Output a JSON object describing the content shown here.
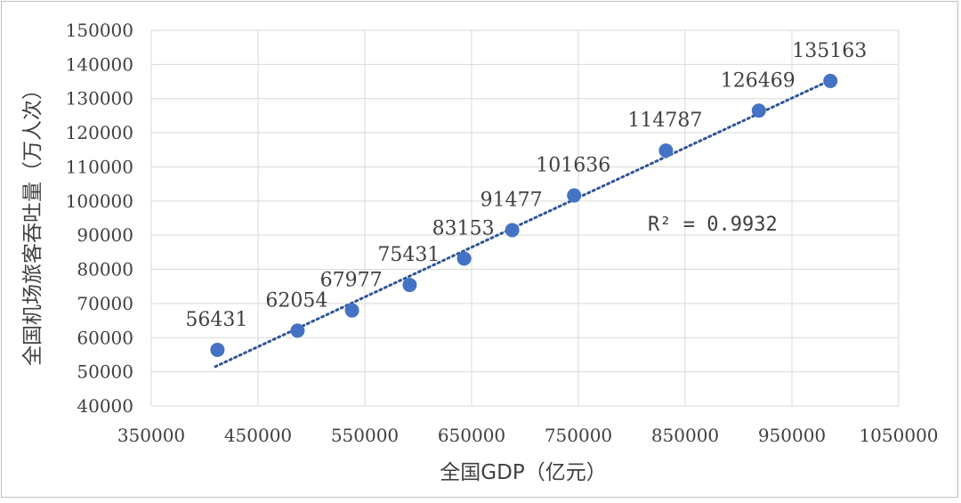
{
  "chart_data": {
    "type": "scatter",
    "xlabel": "全国GDP（亿元）",
    "ylabel": "全国机场旅客吞吐量（万人次）",
    "xlim": [
      350000,
      1050000
    ],
    "ylim": [
      40000,
      150000
    ],
    "x_ticks": [
      "350000",
      "450000",
      "550000",
      "650000",
      "750000",
      "850000",
      "950000",
      "1050000"
    ],
    "y_ticks": [
      "40000",
      "50000",
      "60000",
      "70000",
      "80000",
      "90000",
      "100000",
      "110000",
      "120000",
      "130000",
      "140000",
      "150000"
    ],
    "points": [
      {
        "x": 412000,
        "y": 56431,
        "label": "56431"
      },
      {
        "x": 487000,
        "y": 62054,
        "label": "62054"
      },
      {
        "x": 538000,
        "y": 67977,
        "label": "67977"
      },
      {
        "x": 592000,
        "y": 75431,
        "label": "75431"
      },
      {
        "x": 643000,
        "y": 83153,
        "label": "83153"
      },
      {
        "x": 688000,
        "y": 91477,
        "label": "91477"
      },
      {
        "x": 746000,
        "y": 101636,
        "label": "101636"
      },
      {
        "x": 832000,
        "y": 114787,
        "label": "114787"
      },
      {
        "x": 919000,
        "y": 126469,
        "label": "126469"
      },
      {
        "x": 986000,
        "y": 135163,
        "label": "135163"
      }
    ],
    "trendline": {
      "type": "linear",
      "style": "dotted",
      "r2_label": "R² = 0.9932"
    },
    "grid": true,
    "legend": "none",
    "marker_color": "#4472c4",
    "trend_color": "#2e5597",
    "grid_color": "#d9d9d9"
  }
}
